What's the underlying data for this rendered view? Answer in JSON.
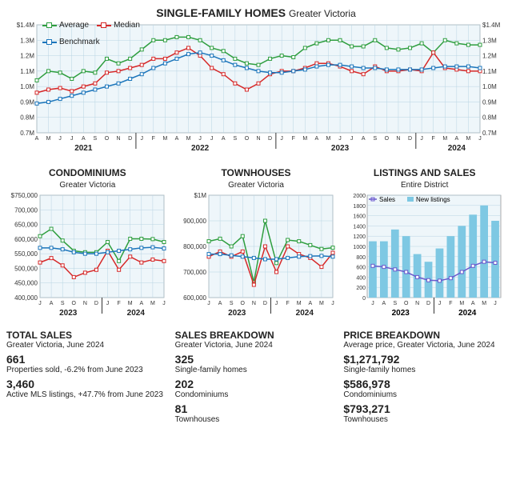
{
  "main_chart": {
    "title": "SINGLE-FAMILY HOMES",
    "subtitle": "Greater Victoria",
    "type": "line",
    "legend": [
      {
        "label": "Average",
        "color": "#2e9e3f"
      },
      {
        "label": "Median",
        "color": "#d62828"
      },
      {
        "label": "Benchmark",
        "color": "#1b75bb"
      }
    ],
    "ylabel_left": [
      "$1.4M",
      "1.3M",
      "1.2M",
      "1.1M",
      "1.0M",
      "0.9M",
      "0.8M",
      "0.7M"
    ],
    "ylabel_right": [
      "$1.4M",
      "1.3M",
      "1.2M",
      "1.1M",
      "1.0M",
      "0.9M",
      "0.8M",
      "0.7M"
    ],
    "ylim": [
      0.7,
      1.4
    ],
    "x_months": [
      "A",
      "M",
      "J",
      "J",
      "A",
      "S",
      "O",
      "N",
      "D",
      "J",
      "F",
      "M",
      "A",
      "M",
      "J",
      "J",
      "A",
      "S",
      "O",
      "N",
      "D",
      "J",
      "F",
      "M",
      "A",
      "M",
      "J",
      "J",
      "A",
      "S",
      "O",
      "N",
      "D",
      "J",
      "F",
      "M",
      "A",
      "M",
      "J"
    ],
    "year_breaks": [
      8,
      20,
      32
    ],
    "year_labels": [
      {
        "label": "2021",
        "at": 4
      },
      {
        "label": "2022",
        "at": 14
      },
      {
        "label": "2023",
        "at": 26
      },
      {
        "label": "2024",
        "at": 36
      }
    ],
    "series": {
      "average": [
        1.04,
        1.1,
        1.09,
        1.05,
        1.1,
        1.09,
        1.18,
        1.15,
        1.18,
        1.24,
        1.3,
        1.3,
        1.32,
        1.32,
        1.3,
        1.25,
        1.23,
        1.18,
        1.15,
        1.14,
        1.18,
        1.2,
        1.19,
        1.25,
        1.28,
        1.3,
        1.3,
        1.26,
        1.26,
        1.3,
        1.25,
        1.24,
        1.25,
        1.28,
        1.22,
        1.3,
        1.28,
        1.27,
        1.27
      ],
      "median": [
        0.96,
        0.98,
        0.99,
        0.97,
        1.0,
        1.02,
        1.09,
        1.1,
        1.12,
        1.14,
        1.18,
        1.18,
        1.22,
        1.25,
        1.2,
        1.12,
        1.08,
        1.02,
        0.98,
        1.02,
        1.08,
        1.1,
        1.1,
        1.12,
        1.15,
        1.15,
        1.13,
        1.1,
        1.08,
        1.13,
        1.1,
        1.1,
        1.11,
        1.1,
        1.22,
        1.12,
        1.11,
        1.1,
        1.1
      ],
      "benchmark": [
        0.89,
        0.9,
        0.92,
        0.94,
        0.96,
        0.98,
        1.0,
        1.02,
        1.05,
        1.08,
        1.12,
        1.15,
        1.18,
        1.21,
        1.22,
        1.2,
        1.17,
        1.14,
        1.12,
        1.1,
        1.09,
        1.09,
        1.1,
        1.11,
        1.13,
        1.14,
        1.14,
        1.13,
        1.12,
        1.12,
        1.11,
        1.11,
        1.11,
        1.11,
        1.12,
        1.13,
        1.13,
        1.13,
        1.12
      ]
    },
    "colors": {
      "average": "#2e9e3f",
      "median": "#d62828",
      "benchmark": "#1b75bb"
    },
    "grid_color": "#b8d4e3",
    "background_color": "#eef6fa"
  },
  "condo_chart": {
    "title": "CONDOMINIUMS",
    "subtitle": "Greater Victoria",
    "type": "line",
    "ylabel": [
      "$750,000",
      "700,000",
      "650,000",
      "600,000",
      "550,000",
      "500,000",
      "450,000",
      "400,000"
    ],
    "ylim": [
      400000,
      750000
    ],
    "x_months": [
      "J",
      "A",
      "S",
      "O",
      "N",
      "D",
      "J",
      "F",
      "M",
      "A",
      "M",
      "J"
    ],
    "year_break": 5,
    "year_labels": [
      {
        "label": "2023",
        "at": 2.5
      },
      {
        "label": "2024",
        "at": 8.5
      }
    ],
    "series": {
      "average": [
        610000,
        635000,
        595000,
        560000,
        555000,
        555000,
        590000,
        525000,
        601000,
        601000,
        600000,
        590000
      ],
      "median": [
        520000,
        535000,
        510000,
        470000,
        485000,
        495000,
        560000,
        495000,
        540000,
        520000,
        530000,
        525000
      ],
      "benchmark": [
        570000,
        570000,
        565000,
        555000,
        550000,
        550000,
        555000,
        560000,
        565000,
        570000,
        572000,
        568000
      ]
    },
    "colors": {
      "average": "#2e9e3f",
      "median": "#d62828",
      "benchmark": "#1b75bb"
    }
  },
  "town_chart": {
    "title": "TOWNHOUSES",
    "subtitle": "Greater Victoria",
    "type": "line",
    "ylabel": [
      "$1M",
      "900,000",
      "800,000",
      "700,000",
      "600,000"
    ],
    "ylim": [
      600000,
      1000000
    ],
    "x_months": [
      "J",
      "A",
      "S",
      "O",
      "N",
      "D",
      "J",
      "F",
      "M",
      "A",
      "M",
      "J"
    ],
    "year_break": 5,
    "year_labels": [
      {
        "label": "2023",
        "at": 2.5
      },
      {
        "label": "2024",
        "at": 8.5
      }
    ],
    "series": {
      "average": [
        820000,
        830000,
        800000,
        840000,
        660000,
        900000,
        735000,
        825000,
        820000,
        805000,
        790000,
        795000
      ],
      "median": [
        760000,
        780000,
        760000,
        780000,
        650000,
        800000,
        700000,
        800000,
        770000,
        755000,
        720000,
        775000
      ],
      "benchmark": [
        770000,
        770000,
        765000,
        760000,
        755000,
        750000,
        750000,
        755000,
        760000,
        762000,
        763000,
        760000
      ]
    },
    "colors": {
      "average": "#2e9e3f",
      "median": "#d62828",
      "benchmark": "#1b75bb"
    }
  },
  "listings_chart": {
    "title": "LISTINGS AND SALES",
    "subtitle": "Entire District",
    "type": "bar+line",
    "legend": [
      {
        "label": "Sales",
        "color": "#6a5acd",
        "type": "line"
      },
      {
        "label": "New listings",
        "color": "#7ec8e3",
        "type": "bar"
      }
    ],
    "ylabel": [
      "2000",
      "1800",
      "1600",
      "1400",
      "1200",
      "1000",
      "800",
      "600",
      "400",
      "200",
      "0"
    ],
    "ylim": [
      0,
      2000
    ],
    "x_months": [
      "J",
      "A",
      "S",
      "O",
      "N",
      "D",
      "J",
      "F",
      "M",
      "A",
      "M",
      "J"
    ],
    "year_break": 5,
    "year_labels": [
      {
        "label": "2023",
        "at": 2.5
      },
      {
        "label": "2024",
        "at": 8.5
      }
    ],
    "bars": [
      1100,
      1100,
      1330,
      1200,
      850,
      700,
      960,
      1200,
      1400,
      1620,
      1800,
      1500
    ],
    "line": [
      620,
      600,
      550,
      500,
      400,
      340,
      330,
      380,
      500,
      620,
      700,
      680
    ],
    "bar_color": "#7ec8e3",
    "line_color": "#6a5acd"
  },
  "total_sales": {
    "header": "TOTAL SALES",
    "sub": "Greater Victoria, June 2024",
    "v1": "661",
    "l1": "Properties sold, -6.2% from June 2023",
    "v2": "3,460",
    "l2": "Active MLS listings, +47.7% from June 2023"
  },
  "sales_breakdown": {
    "header": "SALES BREAKDOWN",
    "sub": "Greater Victoria, June 2024",
    "v1": "325",
    "l1": "Single-family homes",
    "v2": "202",
    "l2": "Condominiums",
    "v3": "81",
    "l3": "Townhouses"
  },
  "price_breakdown": {
    "header": "PRICE BREAKDOWN",
    "sub": "Average price, Greater Victoria, June 2024",
    "v1": "$1,271,792",
    "l1": "Single-family homes",
    "v2": "$586,978",
    "l2": "Condominiums",
    "v3": "$793,271",
    "l3": "Townhouses"
  }
}
